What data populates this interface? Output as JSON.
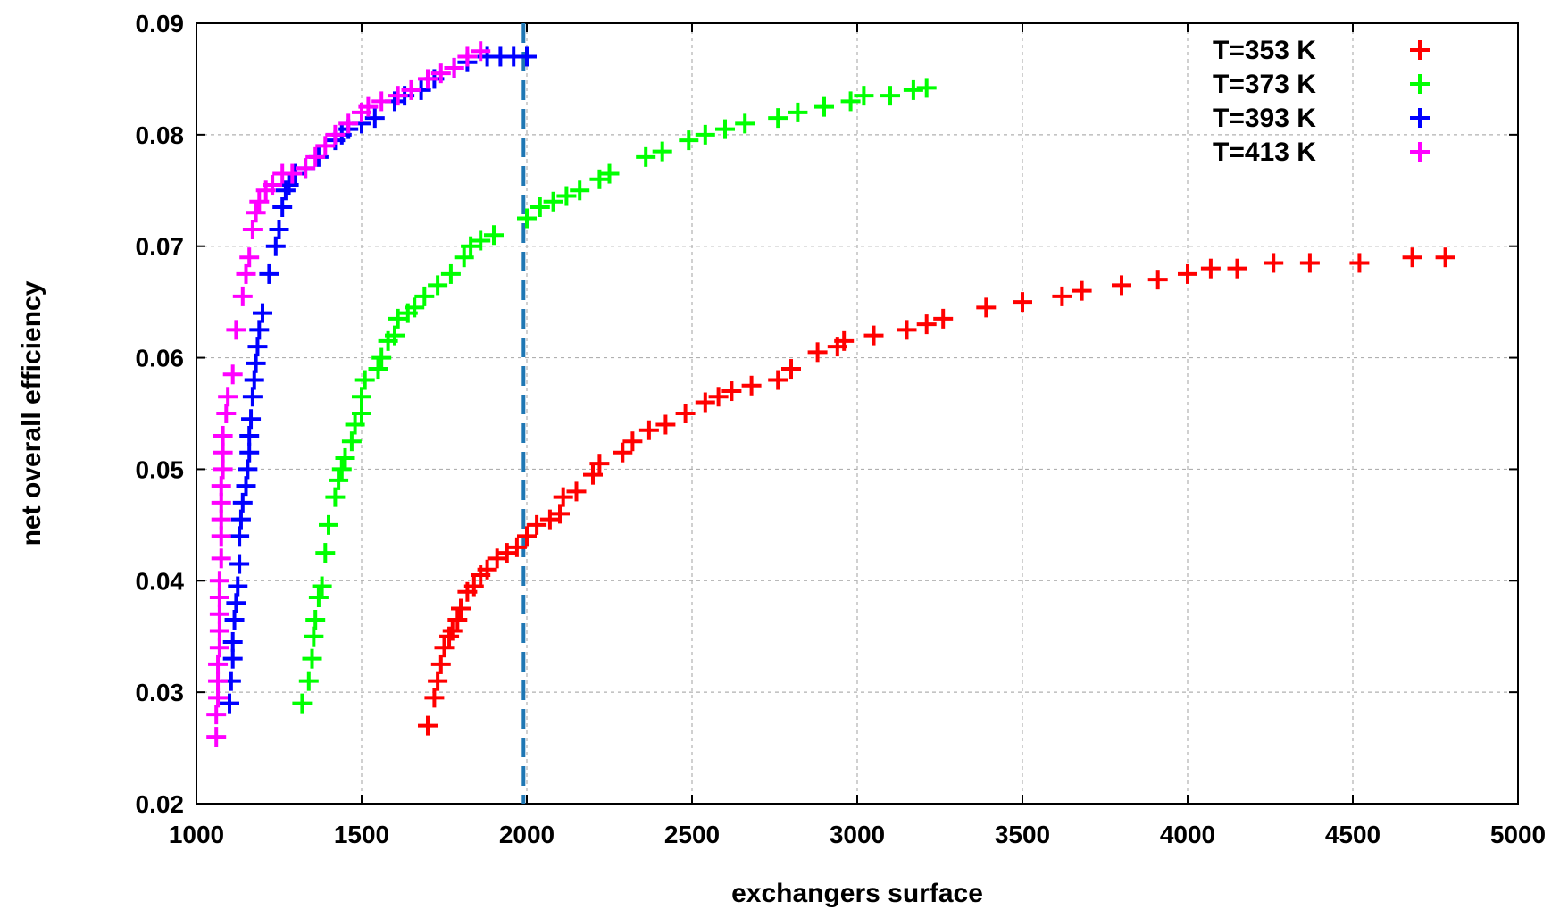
{
  "chart_data": {
    "type": "scatter",
    "title": "",
    "xlabel": "exchangers surface",
    "ylabel": "net overall efficiency",
    "xlim": [
      1000,
      5000
    ],
    "ylim": [
      0.02,
      0.09
    ],
    "xticks": [
      "1000",
      "1500",
      "2000",
      "2500",
      "3000",
      "3500",
      "4000",
      "4500",
      "5000"
    ],
    "yticks": [
      "0.02",
      "0.03",
      "0.04",
      "0.05",
      "0.06",
      "0.07",
      "0.08",
      "0.09"
    ],
    "grid": true,
    "legend_position": "top-right",
    "marker": "plus",
    "reference_line": {
      "x": 1990,
      "style": "dashed",
      "color": "#1f77b4"
    },
    "series": [
      {
        "name": "T=353 K",
        "color": "#ff0000",
        "points": [
          [
            1700,
            0.027
          ],
          [
            1720,
            0.0295
          ],
          [
            1730,
            0.031
          ],
          [
            1740,
            0.0325
          ],
          [
            1750,
            0.034
          ],
          [
            1765,
            0.035
          ],
          [
            1775,
            0.0355
          ],
          [
            1790,
            0.0365
          ],
          [
            1800,
            0.0375
          ],
          [
            1820,
            0.039
          ],
          [
            1840,
            0.0395
          ],
          [
            1860,
            0.0405
          ],
          [
            1880,
            0.041
          ],
          [
            1910,
            0.042
          ],
          [
            1940,
            0.0425
          ],
          [
            1970,
            0.043
          ],
          [
            2000,
            0.044
          ],
          [
            2030,
            0.045
          ],
          [
            2070,
            0.0455
          ],
          [
            2100,
            0.046
          ],
          [
            2110,
            0.0475
          ],
          [
            2150,
            0.048
          ],
          [
            2200,
            0.0495
          ],
          [
            2220,
            0.0505
          ],
          [
            2290,
            0.0515
          ],
          [
            2320,
            0.0525
          ],
          [
            2370,
            0.0535
          ],
          [
            2420,
            0.054
          ],
          [
            2480,
            0.055
          ],
          [
            2540,
            0.056
          ],
          [
            2580,
            0.0565
          ],
          [
            2620,
            0.057
          ],
          [
            2680,
            0.0575
          ],
          [
            2760,
            0.058
          ],
          [
            2800,
            0.059
          ],
          [
            2880,
            0.0605
          ],
          [
            2940,
            0.061
          ],
          [
            2960,
            0.0615
          ],
          [
            3050,
            0.062
          ],
          [
            3150,
            0.0625
          ],
          [
            3210,
            0.063
          ],
          [
            3260,
            0.0635
          ],
          [
            3390,
            0.0645
          ],
          [
            3500,
            0.065
          ],
          [
            3620,
            0.0655
          ],
          [
            3680,
            0.066
          ],
          [
            3800,
            0.0665
          ],
          [
            3910,
            0.067
          ],
          [
            4000,
            0.0675
          ],
          [
            4070,
            0.068
          ],
          [
            4150,
            0.068
          ],
          [
            4260,
            0.0685
          ],
          [
            4370,
            0.0685
          ],
          [
            4520,
            0.0685
          ],
          [
            4680,
            0.069
          ],
          [
            4780,
            0.069
          ]
        ]
      },
      {
        "name": "T=373 K",
        "color": "#00ff00",
        "points": [
          [
            1320,
            0.029
          ],
          [
            1340,
            0.031
          ],
          [
            1350,
            0.033
          ],
          [
            1355,
            0.035
          ],
          [
            1360,
            0.0365
          ],
          [
            1370,
            0.0385
          ],
          [
            1380,
            0.0395
          ],
          [
            1390,
            0.0425
          ],
          [
            1400,
            0.045
          ],
          [
            1420,
            0.0475
          ],
          [
            1430,
            0.049
          ],
          [
            1440,
            0.05
          ],
          [
            1450,
            0.051
          ],
          [
            1470,
            0.0525
          ],
          [
            1480,
            0.054
          ],
          [
            1500,
            0.055
          ],
          [
            1500,
            0.0565
          ],
          [
            1510,
            0.058
          ],
          [
            1550,
            0.059
          ],
          [
            1560,
            0.06
          ],
          [
            1580,
            0.0615
          ],
          [
            1600,
            0.062
          ],
          [
            1610,
            0.0635
          ],
          [
            1640,
            0.064
          ],
          [
            1660,
            0.0645
          ],
          [
            1690,
            0.0655
          ],
          [
            1730,
            0.0665
          ],
          [
            1770,
            0.0675
          ],
          [
            1810,
            0.069
          ],
          [
            1830,
            0.07
          ],
          [
            1860,
            0.0705
          ],
          [
            1900,
            0.071
          ],
          [
            2000,
            0.0725
          ],
          [
            2040,
            0.0735
          ],
          [
            2080,
            0.074
          ],
          [
            2120,
            0.0745
          ],
          [
            2160,
            0.075
          ],
          [
            2220,
            0.076
          ],
          [
            2250,
            0.0765
          ],
          [
            2360,
            0.078
          ],
          [
            2410,
            0.0785
          ],
          [
            2490,
            0.0795
          ],
          [
            2540,
            0.08
          ],
          [
            2600,
            0.0805
          ],
          [
            2660,
            0.081
          ],
          [
            2760,
            0.0815
          ],
          [
            2820,
            0.082
          ],
          [
            2900,
            0.0825
          ],
          [
            2980,
            0.083
          ],
          [
            3020,
            0.0835
          ],
          [
            3100,
            0.0835
          ],
          [
            3170,
            0.084
          ],
          [
            3210,
            0.0842
          ]
        ]
      },
      {
        "name": "T=393 K",
        "color": "#0000ff",
        "points": [
          [
            1100,
            0.029
          ],
          [
            1105,
            0.031
          ],
          [
            1110,
            0.033
          ],
          [
            1110,
            0.0345
          ],
          [
            1115,
            0.0365
          ],
          [
            1120,
            0.038
          ],
          [
            1125,
            0.0395
          ],
          [
            1130,
            0.0415
          ],
          [
            1130,
            0.044
          ],
          [
            1135,
            0.0455
          ],
          [
            1140,
            0.047
          ],
          [
            1150,
            0.0485
          ],
          [
            1155,
            0.05
          ],
          [
            1160,
            0.0515
          ],
          [
            1160,
            0.053
          ],
          [
            1165,
            0.0545
          ],
          [
            1170,
            0.0565
          ],
          [
            1175,
            0.058
          ],
          [
            1180,
            0.0595
          ],
          [
            1185,
            0.061
          ],
          [
            1190,
            0.0625
          ],
          [
            1200,
            0.064
          ],
          [
            1220,
            0.0675
          ],
          [
            1240,
            0.07
          ],
          [
            1250,
            0.0715
          ],
          [
            1260,
            0.0735
          ],
          [
            1270,
            0.075
          ],
          [
            1280,
            0.0755
          ],
          [
            1300,
            0.0765
          ],
          [
            1330,
            0.077
          ],
          [
            1370,
            0.078
          ],
          [
            1420,
            0.0795
          ],
          [
            1440,
            0.08
          ],
          [
            1460,
            0.0805
          ],
          [
            1500,
            0.081
          ],
          [
            1540,
            0.0815
          ],
          [
            1600,
            0.083
          ],
          [
            1630,
            0.0835
          ],
          [
            1680,
            0.084
          ],
          [
            1720,
            0.085
          ],
          [
            1780,
            0.086
          ],
          [
            1820,
            0.0865
          ],
          [
            1880,
            0.087
          ],
          [
            1920,
            0.087
          ],
          [
            1960,
            0.087
          ],
          [
            2000,
            0.087
          ]
        ]
      },
      {
        "name": "T=413 K",
        "color": "#ff00ff",
        "points": [
          [
            1060,
            0.026
          ],
          [
            1060,
            0.028
          ],
          [
            1065,
            0.0295
          ],
          [
            1065,
            0.031
          ],
          [
            1065,
            0.0325
          ],
          [
            1070,
            0.034
          ],
          [
            1070,
            0.0355
          ],
          [
            1070,
            0.037
          ],
          [
            1070,
            0.0385
          ],
          [
            1070,
            0.04
          ],
          [
            1075,
            0.042
          ],
          [
            1075,
            0.044
          ],
          [
            1075,
            0.0455
          ],
          [
            1075,
            0.047
          ],
          [
            1075,
            0.0485
          ],
          [
            1080,
            0.05
          ],
          [
            1080,
            0.0515
          ],
          [
            1080,
            0.053
          ],
          [
            1090,
            0.055
          ],
          [
            1095,
            0.0565
          ],
          [
            1110,
            0.0585
          ],
          [
            1120,
            0.0625
          ],
          [
            1140,
            0.0655
          ],
          [
            1150,
            0.0675
          ],
          [
            1160,
            0.069
          ],
          [
            1170,
            0.0715
          ],
          [
            1180,
            0.073
          ],
          [
            1190,
            0.074
          ],
          [
            1210,
            0.075
          ],
          [
            1230,
            0.0755
          ],
          [
            1260,
            0.0765
          ],
          [
            1290,
            0.0765
          ],
          [
            1330,
            0.077
          ],
          [
            1360,
            0.078
          ],
          [
            1390,
            0.079
          ],
          [
            1420,
            0.08
          ],
          [
            1460,
            0.081
          ],
          [
            1500,
            0.082
          ],
          [
            1520,
            0.0825
          ],
          [
            1560,
            0.083
          ],
          [
            1610,
            0.0835
          ],
          [
            1650,
            0.084
          ],
          [
            1700,
            0.085
          ],
          [
            1740,
            0.0855
          ],
          [
            1780,
            0.086
          ],
          [
            1820,
            0.087
          ],
          [
            1860,
            0.0875
          ]
        ]
      }
    ]
  }
}
